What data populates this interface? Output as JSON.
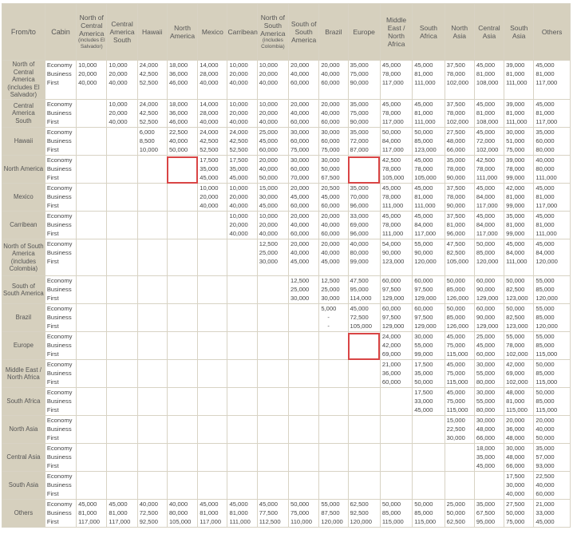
{
  "header": {
    "from_to": "From/to",
    "cabin": "Cabin",
    "columns": [
      {
        "label": "North of Central America",
        "sub": "(includes El Salvador)"
      },
      {
        "label": "Central America South",
        "sub": ""
      },
      {
        "label": "Hawaii",
        "sub": ""
      },
      {
        "label": "North America",
        "sub": ""
      },
      {
        "label": "Mexico",
        "sub": ""
      },
      {
        "label": "Carribean",
        "sub": ""
      },
      {
        "label": "North of South America",
        "sub": "(includes Colombia)"
      },
      {
        "label": "South of South America",
        "sub": ""
      },
      {
        "label": "Brazil",
        "sub": ""
      },
      {
        "label": "Europe",
        "sub": ""
      },
      {
        "label": "Middle East / North Africa",
        "sub": ""
      },
      {
        "label": "South Africa",
        "sub": ""
      },
      {
        "label": "North Asia",
        "sub": ""
      },
      {
        "label": "Central Asia",
        "sub": ""
      },
      {
        "label": "South Asia",
        "sub": ""
      },
      {
        "label": "Others",
        "sub": ""
      }
    ]
  },
  "cabins": [
    "Economy",
    "Business",
    "First"
  ],
  "rows": [
    {
      "from": "North of Central America (includes El Salvador)",
      "height": 49,
      "cells": [
        [
          "10,000",
          "20,000",
          "40,000"
        ],
        [
          "10,000",
          "20,000",
          "40,000"
        ],
        [
          "24,000",
          "42,500",
          "52,500"
        ],
        [
          "18,000",
          "36,000",
          "46,000"
        ],
        [
          "14,000",
          "28,000",
          "40,000"
        ],
        [
          "10,000",
          "20,000",
          "40,000"
        ],
        [
          "10,000",
          "20,000",
          "40,000"
        ],
        [
          "20,000",
          "40,000",
          "60,000"
        ],
        [
          "20,000",
          "40,000",
          "60,000"
        ],
        [
          "35,000",
          "75,000",
          "90,000"
        ],
        [
          "45,000",
          "78,000",
          "117,000"
        ],
        [
          "45,000",
          "81,000",
          "111,000"
        ],
        [
          "37,500",
          "78,000",
          "102,000"
        ],
        [
          "45,000",
          "81,000",
          "108,000"
        ],
        [
          "39,000",
          "81,000",
          "111,000"
        ],
        [
          "45,000",
          "81,000",
          "117,000"
        ]
      ]
    },
    {
      "from": "Central America South",
      "height": 35,
      "cells": [
        null,
        [
          "10,000",
          "20,000",
          "40,000"
        ],
        [
          "24,000",
          "42,500",
          "52,500"
        ],
        [
          "18,000",
          "36,000",
          "46,000"
        ],
        [
          "14,000",
          "28,000",
          "40,000"
        ],
        [
          "10,000",
          "20,000",
          "40,000"
        ],
        [
          "10,000",
          "20,000",
          "40,000"
        ],
        [
          "20,000",
          "40,000",
          "60,000"
        ],
        [
          "20,000",
          "40,000",
          "60,000"
        ],
        [
          "35,000",
          "75,000",
          "90,000"
        ],
        [
          "45,000",
          "78,000",
          "117,000"
        ],
        [
          "45,000",
          "81,000",
          "111,000"
        ],
        [
          "37,500",
          "78,000",
          "102,000"
        ],
        [
          "45,000",
          "81,000",
          "108,000"
        ],
        [
          "39,000",
          "81,000",
          "111,000"
        ],
        [
          "45,000",
          "81,000",
          "117,000"
        ]
      ]
    },
    {
      "from": "Hawaii",
      "height": 35,
      "cells": [
        null,
        null,
        [
          "6,000",
          "8,500",
          "10,000"
        ],
        [
          "22,500",
          "40,000",
          "50,000"
        ],
        [
          "24,000",
          "42,500",
          "52,500"
        ],
        [
          "24,000",
          "42,500",
          "52,500"
        ],
        [
          "25,000",
          "45,000",
          "60,000"
        ],
        [
          "30,000",
          "60,000",
          "75,000"
        ],
        [
          "30,000",
          "60,000",
          "75,000"
        ],
        [
          "35,000",
          "72,000",
          "87,000"
        ],
        [
          "50,000",
          "84,000",
          "117,000"
        ],
        [
          "50,000",
          "85,000",
          "123,000"
        ],
        [
          "27,500",
          "48,000",
          "66,000"
        ],
        [
          "45,000",
          "72,000",
          "102,000"
        ],
        [
          "30,000",
          "51,000",
          "75,000"
        ],
        [
          "35,000",
          "60,000",
          "80,000"
        ]
      ]
    },
    {
      "from": "North America",
      "height": 35,
      "cells": [
        null,
        null,
        null,
        [
          "",
          "",
          ""
        ],
        [
          "17,500",
          "35,000",
          "45,000"
        ],
        [
          "17,500",
          "35,000",
          "45,000"
        ],
        [
          "20,000",
          "40,000",
          "50,000"
        ],
        [
          "30,000",
          "60,000",
          "70,000"
        ],
        [
          "30,000",
          "50,000",
          "67,500"
        ],
        [
          "",
          "",
          ""
        ],
        [
          "42,500",
          "78,000",
          "105,000"
        ],
        [
          "45,000",
          "78,000",
          "105,000"
        ],
        [
          "35,000",
          "78,000",
          "90,000"
        ],
        [
          "42,500",
          "78,000",
          "111,000"
        ],
        [
          "39,000",
          "78,000",
          "99,000"
        ],
        [
          "40,000",
          "80,000",
          "111,000"
        ]
      ]
    },
    {
      "from": "Mexico",
      "height": 35,
      "cells": [
        null,
        null,
        null,
        null,
        [
          "10,000",
          "20,000",
          "40,000"
        ],
        [
          "10,000",
          "20,000",
          "40,000"
        ],
        [
          "15,000",
          "30,000",
          "45,000"
        ],
        [
          "20,000",
          "45,000",
          "60,000"
        ],
        [
          "20,500",
          "45,000",
          "60,000"
        ],
        [
          "35,000",
          "70,000",
          "96,000"
        ],
        [
          "45,000",
          "78,000",
          "111,000"
        ],
        [
          "45,000",
          "81,000",
          "111,000"
        ],
        [
          "37,500",
          "78,000",
          "90,000"
        ],
        [
          "45,000",
          "84,000",
          "117,000"
        ],
        [
          "42,000",
          "81,000",
          "99,000"
        ],
        [
          "45,000",
          "81,000",
          "117,000"
        ]
      ]
    },
    {
      "from": "Carribean",
      "height": 35,
      "cells": [
        null,
        null,
        null,
        null,
        null,
        [
          "10,000",
          "20,000",
          "40,000"
        ],
        [
          "10,000",
          "20,000",
          "40,000"
        ],
        [
          "20,000",
          "40,000",
          "60,000"
        ],
        [
          "20,000",
          "40,000",
          "60,000"
        ],
        [
          "33,000",
          "69,000",
          "96,000"
        ],
        [
          "45,000",
          "78,000",
          "111,000"
        ],
        [
          "45,000",
          "84,000",
          "117,000"
        ],
        [
          "37,500",
          "81,000",
          "96,000"
        ],
        [
          "45,000",
          "84,000",
          "117,000"
        ],
        [
          "35,000",
          "81,000",
          "99,000"
        ],
        [
          "45,000",
          "81,000",
          "111,000"
        ]
      ]
    },
    {
      "from": "North of South America (includes Colombia)",
      "height": 46,
      "cells": [
        null,
        null,
        null,
        null,
        null,
        null,
        [
          "12,500",
          "25,000",
          "30,000"
        ],
        [
          "20,000",
          "40,000",
          "45,000"
        ],
        [
          "20,000",
          "40,000",
          "45,000"
        ],
        [
          "40,000",
          "80,000",
          "99,000"
        ],
        [
          "54,000",
          "90,000",
          "123,000"
        ],
        [
          "55,000",
          "90,000",
          "120,000"
        ],
        [
          "47,500",
          "82,500",
          "105,000"
        ],
        [
          "50,000",
          "85,000",
          "120,000"
        ],
        [
          "45,000",
          "84,000",
          "111,000"
        ],
        [
          "45,000",
          "84,000",
          "120,000"
        ]
      ]
    },
    {
      "from": "South of South America",
      "height": 35,
      "cells": [
        null,
        null,
        null,
        null,
        null,
        null,
        null,
        [
          "12,500",
          "25,000",
          "30,000"
        ],
        [
          "12,500",
          "25,000",
          "30,000"
        ],
        [
          "47,500",
          "95,000",
          "114,000"
        ],
        [
          "60,000",
          "97,500",
          "129,000"
        ],
        [
          "60,000",
          "97,500",
          "129,000"
        ],
        [
          "50,000",
          "85,000",
          "126,000"
        ],
        [
          "60,000",
          "90,000",
          "129,000"
        ],
        [
          "50,000",
          "82,500",
          "123,000"
        ],
        [
          "55,000",
          "85,000",
          "120,000"
        ]
      ]
    },
    {
      "from": "Brazil",
      "height": 35,
      "cells": [
        null,
        null,
        null,
        null,
        null,
        null,
        null,
        null,
        [
          "5,000",
          "-",
          "-"
        ],
        [
          "45,000",
          "72,500",
          "105,000"
        ],
        [
          "60,000",
          "97,500",
          "129,000"
        ],
        [
          "60,000",
          "97,500",
          "129,000"
        ],
        [
          "50,000",
          "85,000",
          "126,000"
        ],
        [
          "60,000",
          "90,000",
          "129,000"
        ],
        [
          "50,000",
          "82,500",
          "123,000"
        ],
        [
          "55,000",
          "85,000",
          "120,000"
        ]
      ]
    },
    {
      "from": "Europe",
      "height": 35,
      "cells": [
        null,
        null,
        null,
        null,
        null,
        null,
        null,
        null,
        null,
        [
          "",
          "",
          ""
        ],
        [
          "24,000",
          "42,000",
          "69,000"
        ],
        [
          "30,000",
          "55,000",
          "99,000"
        ],
        [
          "45,000",
          "75,000",
          "115,000"
        ],
        [
          "25,000",
          "45,000",
          "60,000"
        ],
        [
          "55,000",
          "78,000",
          "102,000"
        ],
        [
          "55,000",
          "85,000",
          "115,000"
        ]
      ]
    },
    {
      "from": "Middle East / North Africa",
      "height": 35,
      "cells": [
        null,
        null,
        null,
        null,
        null,
        null,
        null,
        null,
        null,
        null,
        [
          "21,000",
          "36,000",
          "60,000"
        ],
        [
          "17,500",
          "35,000",
          "50,000"
        ],
        [
          "45,000",
          "75,000",
          "115,000"
        ],
        [
          "30,000",
          "55,000",
          "80,000"
        ],
        [
          "42,000",
          "69,000",
          "102,000"
        ],
        [
          "50,000",
          "85,000",
          "115,000"
        ]
      ]
    },
    {
      "from": "South Africa",
      "height": 35,
      "cells": [
        null,
        null,
        null,
        null,
        null,
        null,
        null,
        null,
        null,
        null,
        null,
        [
          "17,500",
          "33,000",
          "45,000"
        ],
        [
          "45,000",
          "75,000",
          "115,000"
        ],
        [
          "30,000",
          "55,000",
          "80,000"
        ],
        [
          "48,000",
          "81,000",
          "115,000"
        ],
        [
          "50,000",
          "85,000",
          "115,000"
        ]
      ]
    },
    {
      "from": "North Asia",
      "height": 35,
      "cells": [
        null,
        null,
        null,
        null,
        null,
        null,
        null,
        null,
        null,
        null,
        null,
        null,
        [
          "15,000",
          "22,500",
          "30,000"
        ],
        [
          "30,000",
          "48,000",
          "66,000"
        ],
        [
          "20,000",
          "36,000",
          "48,000"
        ],
        [
          "20,000",
          "40,000",
          "50,000"
        ]
      ]
    },
    {
      "from": "Central Asia",
      "height": 35,
      "cells": [
        null,
        null,
        null,
        null,
        null,
        null,
        null,
        null,
        null,
        null,
        null,
        null,
        null,
        [
          "18,000",
          "35,000",
          "45,000"
        ],
        [
          "30,000",
          "48,000",
          "66,000"
        ],
        [
          "35,000",
          "57,000",
          "93,000"
        ]
      ]
    },
    {
      "from": "South Asia",
      "height": 35,
      "cells": [
        null,
        null,
        null,
        null,
        null,
        null,
        null,
        null,
        null,
        null,
        null,
        null,
        null,
        null,
        [
          "17,500",
          "30,000",
          "40,000"
        ],
        [
          "22,500",
          "40,000",
          "60,000"
        ]
      ]
    },
    {
      "from": "Others",
      "height": 35,
      "cells": [
        [
          "45,000",
          "81,000",
          "117,000"
        ],
        [
          "45,000",
          "81,000",
          "117,000"
        ],
        [
          "40,000",
          "72,500",
          "92,500"
        ],
        [
          "40,000",
          "80,000",
          "105,000"
        ],
        [
          "45,000",
          "81,000",
          "117,000"
        ],
        [
          "45,000",
          "81,000",
          "111,000"
        ],
        [
          "45,000",
          "77,500",
          "112,500"
        ],
        [
          "50,000",
          "75,000",
          "110,000"
        ],
        [
          "55,000",
          "87,500",
          "120,000"
        ],
        [
          "62,500",
          "92,500",
          "120,000"
        ],
        [
          "50,000",
          "85,000",
          "115,000"
        ],
        [
          "50,000",
          "85,000",
          "115,000"
        ],
        [
          "25,000",
          "50,000",
          "62,500"
        ],
        [
          "35,000",
          "67,500",
          "95,000"
        ],
        [
          "27,500",
          "50,000",
          "75,000"
        ],
        [
          "21,000",
          "33,000",
          "45,000"
        ]
      ]
    }
  ],
  "highlights": [
    {
      "row": 3,
      "col": 3
    },
    {
      "row": 3,
      "col": 9
    },
    {
      "row": 9,
      "col": 9
    }
  ]
}
